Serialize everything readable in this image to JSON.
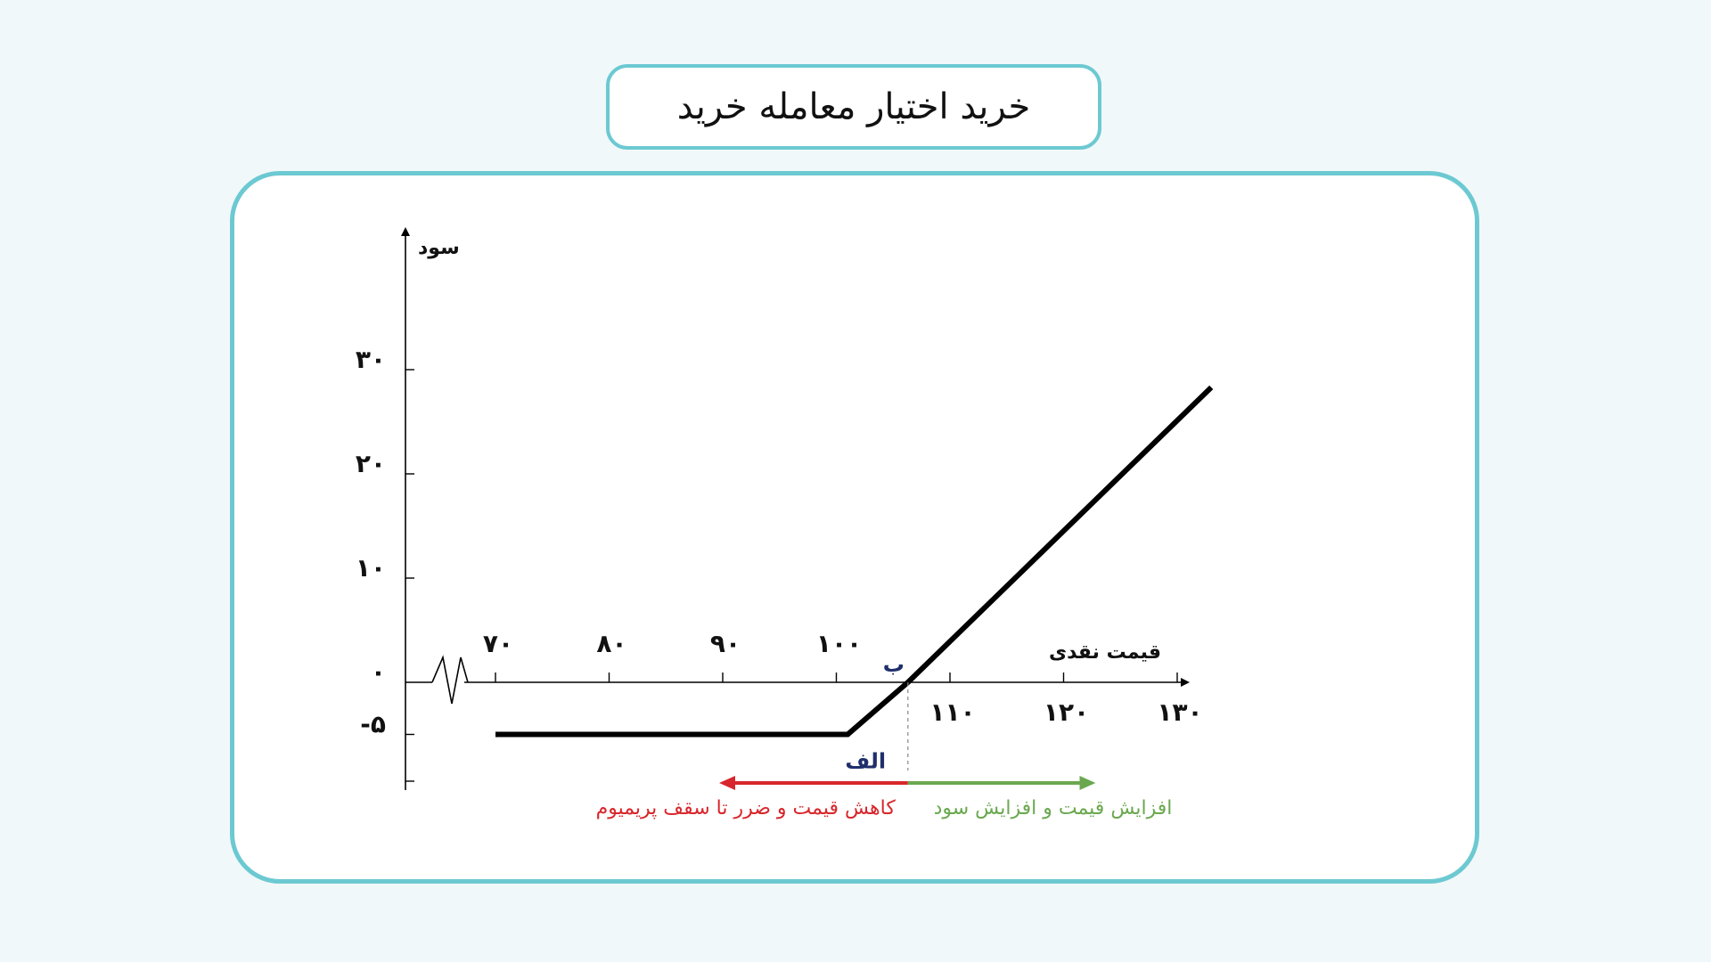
{
  "title": "خرید اختیار معامله خرید",
  "chart_data": {
    "type": "line",
    "xlabel": "قیمت نقدی",
    "ylabel": "سود",
    "xlim": [
      70,
      140
    ],
    "ylim": [
      -10,
      32
    ],
    "x_ticks_above": [
      {
        "value": 70,
        "label": "۷۰"
      },
      {
        "value": 80,
        "label": "۸۰"
      },
      {
        "value": 90,
        "label": "۹۰"
      },
      {
        "value": 100,
        "label": "۱۰۰"
      }
    ],
    "x_ticks_below": [
      {
        "value": 110,
        "label": "۱۱۰"
      },
      {
        "value": 120,
        "label": "۱۲۰"
      },
      {
        "value": 130,
        "label": "۱۳۰"
      }
    ],
    "y_ticks": [
      {
        "value": 30,
        "label": "۳۰"
      },
      {
        "value": 20,
        "label": "۲۰"
      },
      {
        "value": 10,
        "label": "۱۰"
      },
      {
        "value": 0,
        "label": "۰"
      },
      {
        "value": -5,
        "label": "-۵"
      }
    ],
    "axis_break": true,
    "series": [
      {
        "x": [
          70,
          101,
          106.3,
          133
        ],
        "y": [
          -5,
          -5,
          0,
          28.3
        ],
        "color": "#000000"
      }
    ],
    "points": [
      {
        "label": "الف",
        "x": 101,
        "y": -5
      },
      {
        "label": "ب",
        "x": 106.3,
        "y": 0
      }
    ],
    "annotations": [
      {
        "text": "کاهش قیمت و ضرر تا سقف پریمیوم",
        "from_x": 106.3,
        "to_x": 90,
        "color": "#d8262c"
      },
      {
        "text": "افزایش قیمت و افزایش سود",
        "from_x": 106.3,
        "to_x": 122.5,
        "color": "#6aa84f"
      }
    ],
    "colors": {
      "frame": "#6cc9d2",
      "loss": "#d8262c",
      "gain": "#6aa84f",
      "point_label": "#1f2f6b",
      "payoff": "#000000"
    }
  }
}
